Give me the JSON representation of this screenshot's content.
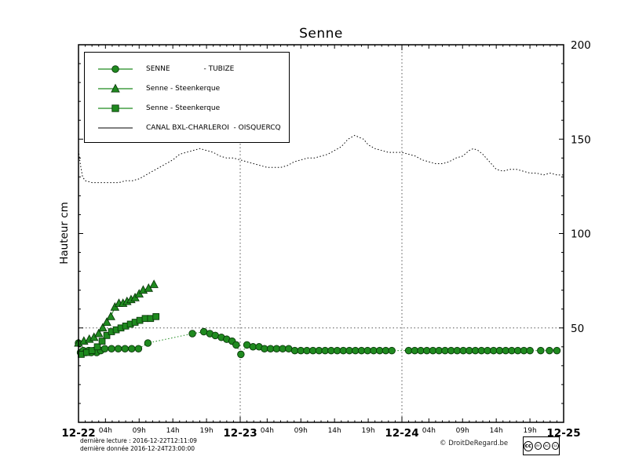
{
  "colors": {
    "green": "#1f8a1f",
    "edge": "#0a3a0a",
    "grid": "#555555",
    "axis": "#000000"
  },
  "legend": {
    "items": [
      {
        "label": "SENNE               - TUBIZE",
        "marker": "circle"
      },
      {
        "label": "Senne - Steenkerque",
        "marker": "triangle"
      },
      {
        "label": "Senne - Steenkerque",
        "marker": "square"
      },
      {
        "label": "CANAL BXL-CHARLEROI  - OISQUERCQ",
        "marker": "line"
      }
    ]
  },
  "footer": {
    "lecture": "dernière lecture : 2016-12-22T12:11:09",
    "donnee": "dernière donnée  2016-12-24T23:00:00",
    "copyright": "© DroitDeRegard.be",
    "license": {
      "logo": "cc",
      "terms": [
        "BY",
        "NC",
        "SA"
      ]
    }
  },
  "chart_data": {
    "type": "line",
    "title": "Senne",
    "xlabel": "",
    "ylabel": "Hauteur cm",
    "ylim": [
      0,
      200
    ],
    "yticks": [
      50,
      100,
      150,
      200
    ],
    "y_minor_step": 10,
    "xlim": [
      0,
      72
    ],
    "legend_position": "upper left",
    "x_major": [
      {
        "hour": 0,
        "label": "12-22"
      },
      {
        "hour": 24,
        "label": "12-23"
      },
      {
        "hour": 48,
        "label": "12-24"
      },
      {
        "hour": 72,
        "label": "12-25"
      }
    ],
    "x_minor_labeled": [
      {
        "hour": 4,
        "label": "04h"
      },
      {
        "hour": 9,
        "label": "09h"
      },
      {
        "hour": 14,
        "label": "14h"
      },
      {
        "hour": 19,
        "label": "19h"
      },
      {
        "hour": 28,
        "label": "04h"
      },
      {
        "hour": 33,
        "label": "09h"
      },
      {
        "hour": 38,
        "label": "14h"
      },
      {
        "hour": 43,
        "label": "19h"
      },
      {
        "hour": 52,
        "label": "04h"
      },
      {
        "hour": 57,
        "label": "09h"
      },
      {
        "hour": 62,
        "label": "14h"
      },
      {
        "hour": 67,
        "label": "19h"
      }
    ],
    "grid": {
      "x_hours": [
        24,
        48
      ],
      "y_values": [
        50
      ]
    },
    "series": [
      {
        "id": "senne-tubize",
        "name": "SENNE - TUBIZE",
        "marker": "circle",
        "color": "green",
        "dash": "1.5,2.5",
        "points": [
          [
            0,
            42
          ],
          [
            0.3,
            37
          ],
          [
            0.7,
            38
          ],
          [
            1.1,
            37
          ],
          [
            1.5,
            38
          ],
          [
            1.9,
            37
          ],
          [
            2.3,
            38
          ],
          [
            2.7,
            37
          ],
          [
            3.3,
            38
          ],
          [
            3.9,
            39
          ],
          [
            4.9,
            39
          ],
          [
            5.9,
            39
          ],
          [
            6.9,
            39
          ],
          [
            7.9,
            39
          ],
          [
            8.9,
            39
          ],
          [
            10.3,
            42
          ],
          [
            16.9,
            47
          ],
          [
            18.6,
            48
          ],
          [
            19.5,
            47
          ],
          [
            20.3,
            46
          ],
          [
            21.2,
            45
          ],
          [
            22,
            44
          ],
          [
            22.8,
            43
          ],
          [
            23.4,
            41
          ],
          [
            24.1,
            36
          ],
          [
            25,
            41
          ],
          [
            25.9,
            40
          ],
          [
            26.8,
            40
          ],
          [
            27.6,
            39
          ],
          [
            28.5,
            39
          ],
          [
            29.4,
            39
          ],
          [
            30.3,
            39
          ],
          [
            31.2,
            39
          ],
          [
            32.1,
            38
          ],
          [
            33,
            38
          ],
          [
            33.9,
            38
          ],
          [
            34.8,
            38
          ],
          [
            35.7,
            38
          ],
          [
            36.6,
            38
          ],
          [
            37.5,
            38
          ],
          [
            38.4,
            38
          ],
          [
            39.3,
            38
          ],
          [
            40.2,
            38
          ],
          [
            41.1,
            38
          ],
          [
            42,
            38
          ],
          [
            42.9,
            38
          ],
          [
            43.8,
            38
          ],
          [
            44.7,
            38
          ],
          [
            45.6,
            38
          ],
          [
            46.5,
            38
          ],
          [
            49,
            38
          ],
          [
            49.9,
            38
          ],
          [
            50.8,
            38
          ],
          [
            51.7,
            38
          ],
          [
            52.6,
            38
          ],
          [
            53.5,
            38
          ],
          [
            54.4,
            38
          ],
          [
            55.3,
            38
          ],
          [
            56.2,
            38
          ],
          [
            57.1,
            38
          ],
          [
            58,
            38
          ],
          [
            58.9,
            38
          ],
          [
            59.8,
            38
          ],
          [
            60.7,
            38
          ],
          [
            61.6,
            38
          ],
          [
            62.5,
            38
          ],
          [
            63.4,
            38
          ],
          [
            64.3,
            38
          ],
          [
            65.2,
            38
          ],
          [
            66.1,
            38
          ],
          [
            67,
            38
          ],
          [
            68.6,
            38
          ],
          [
            69.9,
            38
          ],
          [
            71,
            38
          ]
        ]
      },
      {
        "id": "senne-steenkerque-triangles",
        "name": "Senne - Steenkerque",
        "marker": "triangle",
        "color": "green",
        "dash": "",
        "points": [
          [
            0,
            42
          ],
          [
            0.8,
            43
          ],
          [
            1.6,
            44
          ],
          [
            2.3,
            45
          ],
          [
            3,
            47
          ],
          [
            3.6,
            50
          ],
          [
            4.2,
            53
          ],
          [
            4.8,
            56
          ],
          [
            5.4,
            61
          ],
          [
            6,
            63
          ],
          [
            6.6,
            63
          ],
          [
            7.2,
            64
          ],
          [
            7.8,
            65
          ],
          [
            8.4,
            66
          ],
          [
            9,
            68
          ],
          [
            9.6,
            70
          ],
          [
            10.4,
            71
          ],
          [
            11.2,
            73
          ]
        ]
      },
      {
        "id": "senne-steenkerque-squares",
        "name": "Senne - Steenkerque",
        "marker": "square",
        "color": "green",
        "dash": "",
        "points": [
          [
            0.4,
            36
          ],
          [
            1.2,
            37
          ],
          [
            2,
            38
          ],
          [
            2.8,
            40
          ],
          [
            3.5,
            43
          ],
          [
            4.2,
            46
          ],
          [
            4.9,
            48
          ],
          [
            5.6,
            49
          ],
          [
            6.3,
            50
          ],
          [
            7,
            51
          ],
          [
            7.7,
            52
          ],
          [
            8.4,
            53
          ],
          [
            9.1,
            54
          ],
          [
            9.9,
            55
          ],
          [
            10.7,
            55
          ],
          [
            11.5,
            56
          ]
        ]
      },
      {
        "id": "canal-bxl-charleroi-oisquercq",
        "name": "CANAL BXL-CHARLEROI - OISQUERCQ",
        "marker": "none",
        "color": "#000000",
        "dash": "1.5,2.5",
        "points": [
          [
            0,
            144
          ],
          [
            0.3,
            136
          ],
          [
            0.6,
            130
          ],
          [
            1,
            128
          ],
          [
            2,
            127
          ],
          [
            3,
            127
          ],
          [
            4,
            127
          ],
          [
            5,
            127
          ],
          [
            6,
            127
          ],
          [
            7,
            128
          ],
          [
            8,
            128
          ],
          [
            9,
            129
          ],
          [
            10,
            131
          ],
          [
            11,
            133
          ],
          [
            12,
            135
          ],
          [
            13,
            137
          ],
          [
            14,
            139
          ],
          [
            15,
            142
          ],
          [
            16,
            143
          ],
          [
            17,
            144
          ],
          [
            18,
            145
          ],
          [
            19,
            144
          ],
          [
            20,
            143
          ],
          [
            21,
            141
          ],
          [
            22,
            140
          ],
          [
            23,
            140
          ],
          [
            24,
            139
          ],
          [
            25,
            138
          ],
          [
            26,
            137
          ],
          [
            27,
            136
          ],
          [
            28,
            135
          ],
          [
            29,
            135
          ],
          [
            30,
            135
          ],
          [
            31,
            136
          ],
          [
            32,
            138
          ],
          [
            33,
            139
          ],
          [
            34,
            140
          ],
          [
            35,
            140
          ],
          [
            36,
            141
          ],
          [
            37,
            142
          ],
          [
            38,
            144
          ],
          [
            39,
            146
          ],
          [
            40,
            150
          ],
          [
            41,
            152
          ],
          [
            41.6,
            151
          ],
          [
            42.3,
            150
          ],
          [
            43,
            147
          ],
          [
            44,
            145
          ],
          [
            45,
            144
          ],
          [
            46,
            143
          ],
          [
            47,
            143
          ],
          [
            48,
            143
          ],
          [
            49,
            142
          ],
          [
            50,
            141
          ],
          [
            51,
            139
          ],
          [
            52,
            138
          ],
          [
            53,
            137
          ],
          [
            54,
            137
          ],
          [
            55,
            138
          ],
          [
            56,
            140
          ],
          [
            57,
            141
          ],
          [
            58,
            144
          ],
          [
            58.6,
            145
          ],
          [
            59.3,
            144
          ],
          [
            60,
            142
          ],
          [
            61,
            138
          ],
          [
            62,
            134
          ],
          [
            63,
            133
          ],
          [
            64,
            134
          ],
          [
            65,
            134
          ],
          [
            66,
            133
          ],
          [
            67,
            132
          ],
          [
            68,
            132
          ],
          [
            69,
            131
          ],
          [
            70,
            132
          ],
          [
            71,
            131
          ],
          [
            72,
            131
          ]
        ]
      }
    ]
  }
}
